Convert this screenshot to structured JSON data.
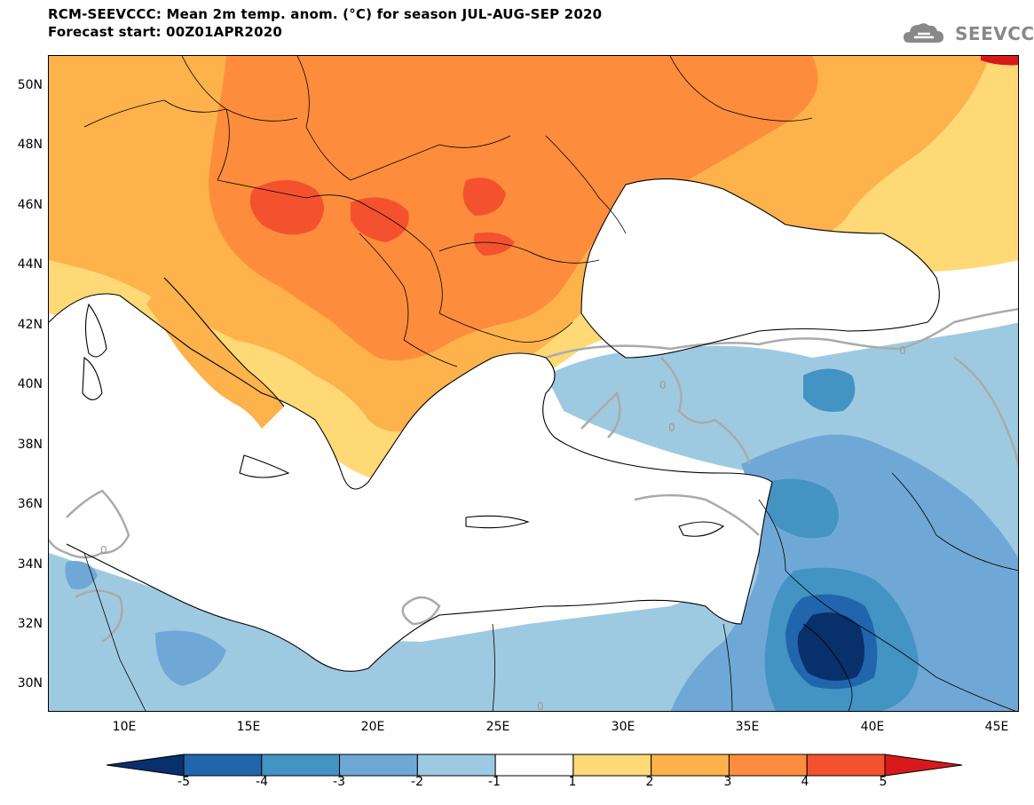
{
  "header": {
    "title_line1": "RCM-SEEVCCC: Mean 2m temp. anom. (°C) for season JUL-AUG-SEP 2020",
    "title_line2": "Forecast start: 00Z01APR2020",
    "logo_text": "SEEVCCC",
    "logo_icon": "cloud-icon"
  },
  "map": {
    "lat_ticks": [
      "50N",
      "48N",
      "46N",
      "44N",
      "42N",
      "40N",
      "38N",
      "36N",
      "34N",
      "32N",
      "30N"
    ],
    "lon_ticks": [
      "10E",
      "15E",
      "20E",
      "25E",
      "30E",
      "35E",
      "40E",
      "45E"
    ],
    "contour_label": "0"
  },
  "colorbar": {
    "labels": [
      "-5",
      "-4",
      "-3",
      "-2",
      "-1",
      "1",
      "2",
      "3",
      "4",
      "5"
    ],
    "colors": [
      "#08306b",
      "#2166ac",
      "#4393c3",
      "#6fa8d6",
      "#9ecae1",
      "#ffffff",
      "#fed976",
      "#feb24c",
      "#fd8d3c",
      "#f4522f",
      "#d7191c"
    ]
  }
}
